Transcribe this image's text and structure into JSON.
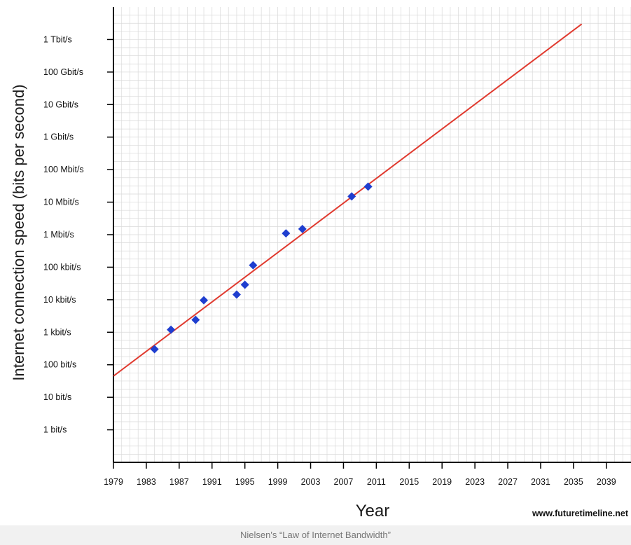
{
  "chart_data": {
    "type": "scatter",
    "title": "",
    "xlabel": "Year",
    "ylabel": "Internet connection speed (bits per second)",
    "x_ticks": [
      1979,
      1983,
      1987,
      1991,
      1995,
      1999,
      2003,
      2007,
      2011,
      2015,
      2019,
      2023,
      2027,
      2031,
      2035,
      2039
    ],
    "y_ticks": [
      {
        "label": "1 bit/s",
        "exp": 0
      },
      {
        "label": "10 bit/s",
        "exp": 1
      },
      {
        "label": "100 bit/s",
        "exp": 2
      },
      {
        "label": "1 kbit/s",
        "exp": 3
      },
      {
        "label": "10 kbit/s",
        "exp": 4
      },
      {
        "label": "100 kbit/s",
        "exp": 5
      },
      {
        "label": "1 Mbit/s",
        "exp": 6
      },
      {
        "label": "10 Mbit/s",
        "exp": 7
      },
      {
        "label": "100 Mbit/s",
        "exp": 8
      },
      {
        "label": "1 Gbit/s",
        "exp": 9
      },
      {
        "label": "10 Gbit/s",
        "exp": 10
      },
      {
        "label": "100 Gbit/s",
        "exp": 11
      },
      {
        "label": "1 Tbit/s",
        "exp": 12
      }
    ],
    "y_scale": "log10",
    "xlim": [
      1979,
      2042
    ],
    "ylim_exp": [
      -1,
      13
    ],
    "grid": true,
    "colors": {
      "points": "#1f3ecf",
      "trend": "#e03a2f",
      "grid": "#d9d9d9",
      "axis": "#000000"
    },
    "series": [
      {
        "type": "scatter",
        "points": [
          {
            "x": 1984,
            "y": 300
          },
          {
            "x": 1986,
            "y": 1200
          },
          {
            "x": 1989,
            "y": 2400
          },
          {
            "x": 1990,
            "y": 9600
          },
          {
            "x": 1994,
            "y": 14400
          },
          {
            "x": 1995,
            "y": 28800
          },
          {
            "x": 1996,
            "y": 115000
          },
          {
            "x": 2000,
            "y": 1100000
          },
          {
            "x": 2002,
            "y": 1500000
          },
          {
            "x": 2008,
            "y": 15000000
          },
          {
            "x": 2010,
            "y": 30000000
          }
        ]
      },
      {
        "type": "line",
        "points": [
          {
            "x": 1979,
            "y": 45
          },
          {
            "x": 2036,
            "y": 3000000000000
          }
        ]
      }
    ]
  },
  "credit": "www.futuretimeline.net",
  "caption": "Nielsen's “Law of Internet Bandwidth”"
}
